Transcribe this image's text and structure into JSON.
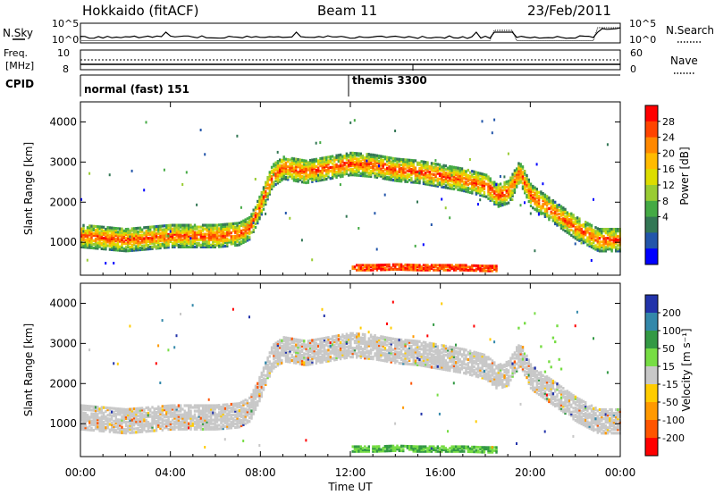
{
  "header": {
    "radar": "Hokkaido (fitACF)",
    "beam": "Beam 11",
    "date": "23/Feb/2011"
  },
  "panels": {
    "nsky": {
      "left_label": "N.Sky",
      "right_label": "N.Search",
      "left_ticks": [
        "10^5",
        "10^0"
      ],
      "right_ticks": [
        "10^5",
        "10^0"
      ]
    },
    "freq": {
      "left_label_1": "Freq.",
      "left_label_2": "[MHz]",
      "right_label": "Nave",
      "left_ticks": [
        "10",
        "8"
      ],
      "right_ticks": [
        "60",
        "0"
      ]
    },
    "cpid": {
      "label": "CPID",
      "modes": [
        "normal (fast) 151",
        "themis 3300"
      ]
    }
  },
  "chart_data": [
    {
      "type": "heatmap",
      "title": "Power",
      "ylabel": "Slant Range [km]",
      "ylim": [
        180,
        4500
      ],
      "xlim": [
        "00:00",
        "24:00"
      ],
      "y_ticks": [
        1000,
        2000,
        3000,
        4000
      ],
      "colorbar": {
        "label": "Power [dB]",
        "ticks": [
          "28",
          "24",
          "20",
          "16",
          "12",
          "8",
          "4"
        ],
        "colors": [
          "#ff0000",
          "#ff4400",
          "#ff8800",
          "#ffbb00",
          "#dddd00",
          "#99cc33",
          "#44aa44",
          "#337755",
          "#2255aa",
          "#0000ff"
        ]
      },
      "series": [
        {
          "t": [
            0,
            1,
            2,
            3,
            4,
            5,
            6,
            7,
            7.5,
            8,
            8.5,
            9,
            10,
            11,
            12,
            13,
            14,
            15,
            16,
            17,
            18,
            18.5,
            19,
            19.5,
            20,
            21,
            22,
            23,
            24
          ],
          "range": [
            1200,
            1150,
            1100,
            1150,
            1200,
            1200,
            1200,
            1250,
            1400,
            2000,
            2700,
            2900,
            2800,
            2900,
            3000,
            2950,
            2850,
            2800,
            2700,
            2600,
            2450,
            2200,
            2300,
            2800,
            2200,
            1800,
            1400,
            1100,
            1100
          ]
        },
        {
          "t": [
            12,
            13,
            14,
            15,
            16,
            17,
            18,
            18.5
          ],
          "range": [
            400,
            400,
            420,
            400,
            400,
            400,
            380,
            380
          ]
        }
      ]
    },
    {
      "type": "heatmap",
      "title": "Velocity",
      "ylabel": "Slant Range [km]",
      "xlabel": "Time UT",
      "ylim": [
        180,
        4500
      ],
      "xlim": [
        "00:00",
        "24:00"
      ],
      "y_ticks": [
        1000,
        2000,
        3000,
        4000
      ],
      "x_ticks": [
        "00:00",
        "04:00",
        "08:00",
        "12:00",
        "16:00",
        "20:00",
        "00:00"
      ],
      "colorbar": {
        "label": "Velocity [m s⁻¹]",
        "ticks": [
          "200",
          "100",
          "50",
          "15",
          "-15",
          "-50",
          "-100",
          "-200"
        ],
        "colors": [
          "#2233aa",
          "#3388aa",
          "#339944",
          "#77dd44",
          "#c8c8c8",
          "#ffcc00",
          "#ff9900",
          "#ff5500",
          "#ff0000"
        ]
      }
    }
  ],
  "colors": {
    "ground_scatter": "#c8c8c8",
    "background": "#ffffff"
  }
}
